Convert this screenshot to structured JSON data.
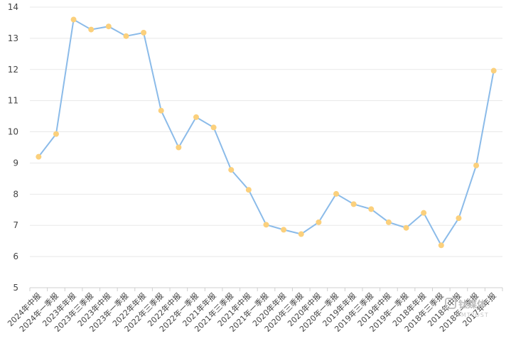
{
  "chart_data": {
    "type": "line",
    "categories": [
      "2024年中报",
      "2024年一季报",
      "2023年年报",
      "2023年三季报",
      "2023年中报",
      "2023年一季报",
      "2022年年报",
      "2022年三季报",
      "2022年中报",
      "2022年一季报",
      "2021年年报",
      "2021年三季报",
      "2021年中报",
      "2021年一季报",
      "2020年年报",
      "2020年三季报",
      "2020年中报",
      "2020年一季报",
      "2019年年报",
      "2019年三季报",
      "2019年中报",
      "2019年一季报",
      "2018年年报",
      "2018年三季报",
      "2018年中报",
      "2018年一季报",
      "2017年年报"
    ],
    "series": [
      {
        "values": [
          9.2,
          9.93,
          13.6,
          13.28,
          13.38,
          13.07,
          13.18,
          10.68,
          9.5,
          10.47,
          10.14,
          8.78,
          8.14,
          7.02,
          6.86,
          6.72,
          7.1,
          8.01,
          7.68,
          7.52,
          7.1,
          6.92,
          7.4,
          6.36,
          7.23,
          8.92,
          11.96
        ]
      }
    ],
    "yticks": [
      5,
      6,
      7,
      8,
      9,
      10,
      11,
      12,
      13,
      14
    ],
    "ylim": [
      5,
      14
    ],
    "title": "",
    "xlabel": "",
    "ylabel": "",
    "grid": true,
    "line_color": "#8bbbe9",
    "marker_color": "#fbd07c"
  },
  "watermark": {
    "main": "钛媒体",
    "sub": "TMTPOST"
  }
}
